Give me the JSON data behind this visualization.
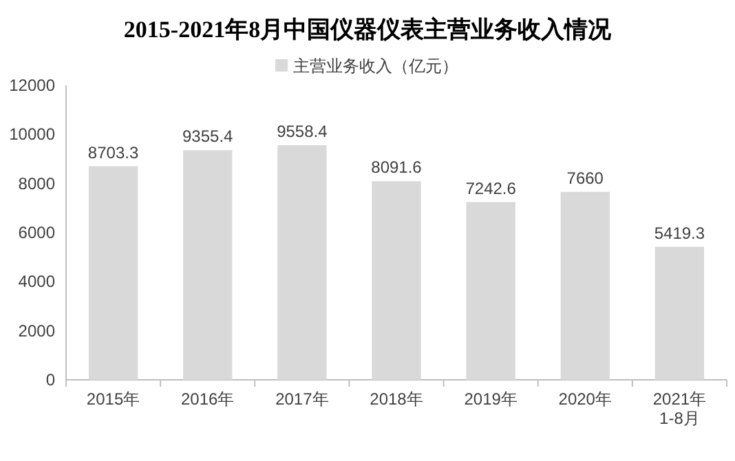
{
  "chart_data": {
    "type": "bar",
    "title": "2015-2021年8月中国仪器仪表主营业务收入情况",
    "categories": [
      "2015年",
      "2016年",
      "2017年",
      "2018年",
      "2019年",
      "2020年",
      "2021年\n1-8月"
    ],
    "series": [
      {
        "name": "主营业务收入（亿元）",
        "color": "#d9d9d9",
        "values": [
          8703.3,
          9355.4,
          9558.4,
          8091.6,
          7242.6,
          7660,
          5419.3
        ]
      }
    ],
    "ylim": [
      0,
      12000
    ],
    "yticks": [
      0,
      2000,
      4000,
      6000,
      8000,
      10000,
      12000
    ],
    "data_labels": true,
    "legend": "top",
    "grid": false
  }
}
